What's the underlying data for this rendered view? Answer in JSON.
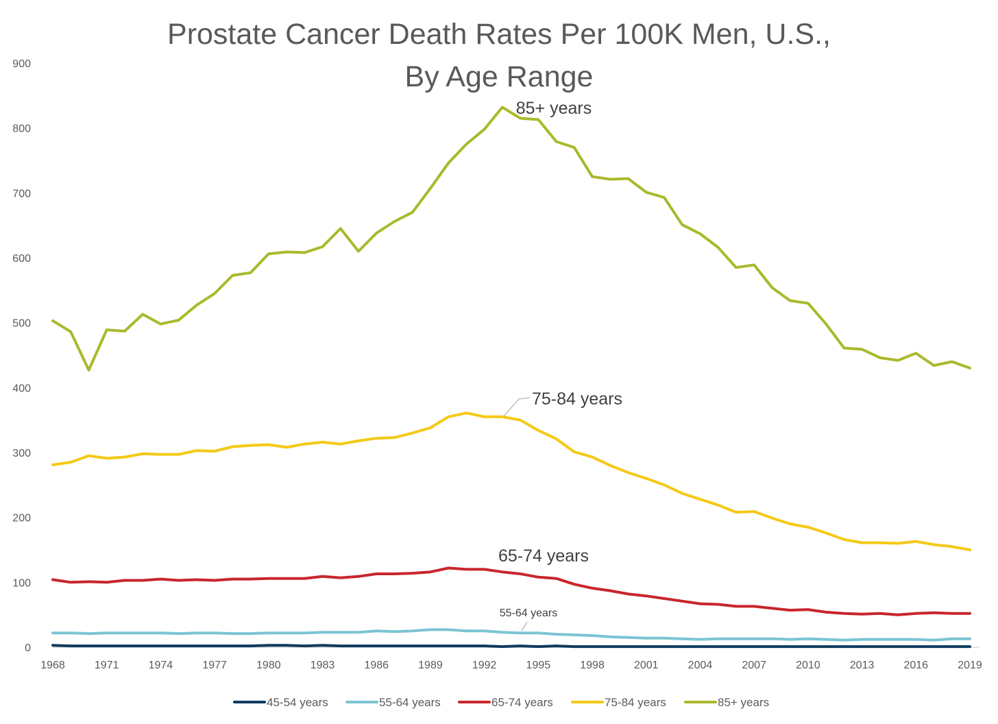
{
  "chart_data": {
    "type": "line",
    "title_lines": [
      "Prostate Cancer Death Rates Per 100K Men, U.S.,",
      "By Age Range"
    ],
    "xlabel": "",
    "ylabel": "",
    "xlim": [
      1968,
      2019
    ],
    "ylim": [
      0,
      900
    ],
    "y_ticks": [
      0,
      100,
      200,
      300,
      400,
      500,
      600,
      700,
      800,
      900
    ],
    "x_ticks": [
      1968,
      1971,
      1974,
      1977,
      1980,
      1983,
      1986,
      1989,
      1992,
      1995,
      1998,
      2001,
      2004,
      2007,
      2010,
      2013,
      2016,
      2019
    ],
    "grid": false,
    "legend_position": "bottom",
    "x": [
      1968,
      1969,
      1970,
      1971,
      1972,
      1973,
      1974,
      1975,
      1976,
      1977,
      1978,
      1979,
      1980,
      1981,
      1982,
      1983,
      1984,
      1985,
      1986,
      1987,
      1988,
      1989,
      1990,
      1991,
      1992,
      1993,
      1994,
      1995,
      1996,
      1997,
      1998,
      1999,
      2000,
      2001,
      2002,
      2003,
      2004,
      2005,
      2006,
      2007,
      2008,
      2009,
      2010,
      2011,
      2012,
      2013,
      2014,
      2015,
      2016,
      2017,
      2018,
      2019
    ],
    "series": [
      {
        "name": "45-54 years",
        "color": "#0f3b5f",
        "values": [
          3,
          2,
          2,
          2,
          2,
          2,
          2,
          2,
          2,
          2,
          2,
          2,
          3,
          3,
          2,
          3,
          2,
          2,
          2,
          2,
          2,
          2,
          2,
          2,
          2,
          1,
          2,
          1,
          2,
          1,
          1,
          1,
          1,
          1,
          1,
          1,
          1,
          1,
          1,
          1,
          1,
          1,
          1,
          1,
          1,
          1,
          1,
          1,
          1,
          1,
          1,
          1
        ]
      },
      {
        "name": "55-64 years",
        "color": "#7cc4d4",
        "values": [
          22,
          22,
          21,
          22,
          22,
          22,
          22,
          21,
          22,
          22,
          21,
          21,
          22,
          22,
          22,
          23,
          23,
          23,
          25,
          24,
          25,
          27,
          27,
          25,
          25,
          23,
          22,
          22,
          20,
          19,
          18,
          16,
          15,
          14,
          14,
          13,
          12,
          13,
          13,
          13,
          13,
          12,
          13,
          12,
          11,
          12,
          12,
          12,
          12,
          11,
          13,
          13
        ]
      },
      {
        "name": "65-74 years",
        "color": "#c8262c",
        "values": [
          104,
          100,
          101,
          100,
          103,
          103,
          105,
          103,
          104,
          103,
          105,
          105,
          106,
          106,
          106,
          109,
          107,
          109,
          113,
          113,
          114,
          116,
          122,
          120,
          120,
          116,
          113,
          108,
          106,
          97,
          91,
          87,
          82,
          79,
          75,
          71,
          67,
          66,
          63,
          63,
          60,
          57,
          58,
          54,
          52,
          51,
          52,
          50,
          52,
          53,
          52,
          52
        ]
      },
      {
        "name": "75-84 years",
        "color": "#f5c916",
        "values": [
          281,
          285,
          295,
          291,
          293,
          298,
          297,
          297,
          303,
          302,
          309,
          311,
          312,
          308,
          313,
          316,
          313,
          318,
          322,
          323,
          330,
          338,
          355,
          361,
          355,
          355,
          350,
          334,
          321,
          301,
          293,
          280,
          269,
          260,
          250,
          237,
          228,
          219,
          208,
          209,
          199,
          190,
          185,
          176,
          166,
          161,
          161,
          160,
          163,
          158,
          155,
          150
        ]
      },
      {
        "name": "85+ years",
        "color": "#a9b92c",
        "values": [
          503,
          486,
          427,
          489,
          487,
          513,
          498,
          504,
          527,
          545,
          573,
          577,
          606,
          609,
          608,
          617,
          645,
          610,
          638,
          656,
          670,
          707,
          746,
          775,
          798,
          832,
          815,
          813,
          779,
          770,
          725,
          721,
          722,
          701,
          693,
          651,
          637,
          616,
          585,
          589,
          554,
          534,
          530,
          498,
          461,
          459,
          446,
          442,
          453,
          434,
          440,
          430
        ]
      }
    ],
    "annotations": [
      {
        "text": "85+ years",
        "series": "85+ years"
      },
      {
        "text": "75-84 years",
        "series": "75-84 years"
      },
      {
        "text": "65-74 years",
        "series": "65-74 years"
      },
      {
        "text": "55-64 years",
        "series": "55-64 years"
      }
    ]
  }
}
